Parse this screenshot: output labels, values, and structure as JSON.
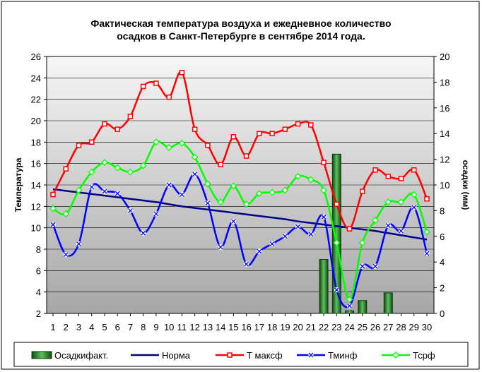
{
  "colors": {
    "precip": "#2e7d2e",
    "norm": "#00008b",
    "tmax": "#ff0000",
    "tmin": "#0000ff",
    "tavg": "#00ff00",
    "plot_bg_top": "#f6f6f6",
    "plot_bg_bottom": "#a6a6a6"
  },
  "chart_data": {
    "type": "line",
    "title_line1": "Фактическая температура воздуха и ежедневное количество",
    "title_line2": "осадков в Санкт-Петербурге в сентябре 2014 года.",
    "ylabel_left": "Температура",
    "ylabel_right": "осадки (мм)",
    "xlabel": "",
    "categories": [
      "1",
      "2",
      "3",
      "4",
      "5",
      "6",
      "7",
      "8",
      "9",
      "10",
      "11",
      "12",
      "13",
      "14",
      "15",
      "16",
      "17",
      "18",
      "19",
      "20",
      "21",
      "22",
      "23",
      "24",
      "25",
      "26",
      "27",
      "28",
      "29",
      "30"
    ],
    "ylim_left": [
      2,
      26
    ],
    "yticks_left": [
      2,
      4,
      6,
      8,
      10,
      12,
      14,
      16,
      18,
      20,
      22,
      24,
      26
    ],
    "ylim_right": [
      0,
      20
    ],
    "yticks_right": [
      0,
      2,
      4,
      6,
      8,
      10,
      12,
      14,
      16,
      18,
      20
    ],
    "grid": true,
    "legend_position": "bottom",
    "series": [
      {
        "name": "Осадкифакт.",
        "kind": "bar",
        "axis": "right",
        "color_key": "precip",
        "values": [
          0,
          0,
          0,
          0,
          0,
          0,
          0,
          0,
          0,
          0,
          0,
          0,
          0,
          0,
          0,
          0,
          0,
          0,
          0,
          0,
          0,
          4.2,
          12.4,
          0.2,
          1.0,
          0,
          1.6,
          0,
          0,
          0
        ]
      },
      {
        "name": "Норма",
        "kind": "line",
        "axis": "left",
        "color_key": "norm",
        "values": [
          13.6,
          13.45,
          13.3,
          13.15,
          13.0,
          12.85,
          12.7,
          12.55,
          12.4,
          12.2,
          12.0,
          11.85,
          11.7,
          11.55,
          11.4,
          11.25,
          11.1,
          10.95,
          10.8,
          10.6,
          10.45,
          10.3,
          10.15,
          10.0,
          9.85,
          9.7,
          9.5,
          9.3,
          9.1,
          8.9
        ]
      },
      {
        "name": "Т максф",
        "kind": "line",
        "axis": "left",
        "color_key": "tmax",
        "marker": "square",
        "values": [
          13.1,
          15.5,
          17.7,
          18.0,
          19.7,
          19.2,
          20.4,
          23.2,
          23.5,
          22.2,
          24.5,
          19.2,
          17.7,
          15.9,
          18.5,
          16.7,
          18.8,
          18.8,
          19.2,
          19.7,
          19.6,
          16.1,
          12.2,
          9.9,
          13.4,
          15.4,
          14.8,
          14.6,
          15.4,
          12.7
        ]
      },
      {
        "name": "Тминф",
        "kind": "line",
        "axis": "left",
        "color_key": "tmin",
        "marker": "x",
        "values": [
          10.3,
          7.5,
          8.5,
          13.8,
          13.4,
          13.2,
          11.6,
          9.5,
          11.3,
          14.0,
          13.1,
          15.0,
          12.3,
          8.2,
          10.6,
          6.6,
          7.8,
          8.5,
          9.2,
          10.1,
          9.4,
          11.0,
          4.2,
          2.7,
          6.4,
          6.4,
          10.2,
          9.7,
          11.9,
          7.6
        ]
      },
      {
        "name": "Тсрф",
        "kind": "line",
        "axis": "left",
        "color_key": "tavg",
        "marker": "diamond",
        "values": [
          11.8,
          11.3,
          13.5,
          15.2,
          16.1,
          15.6,
          15.2,
          15.8,
          18.0,
          17.5,
          17.9,
          16.6,
          14.1,
          12.4,
          13.9,
          12.2,
          13.2,
          13.3,
          13.5,
          14.8,
          14.5,
          13.5,
          8.6,
          3.3,
          8.6,
          10.7,
          12.4,
          12.4,
          13.1,
          9.6
        ]
      }
    ]
  }
}
